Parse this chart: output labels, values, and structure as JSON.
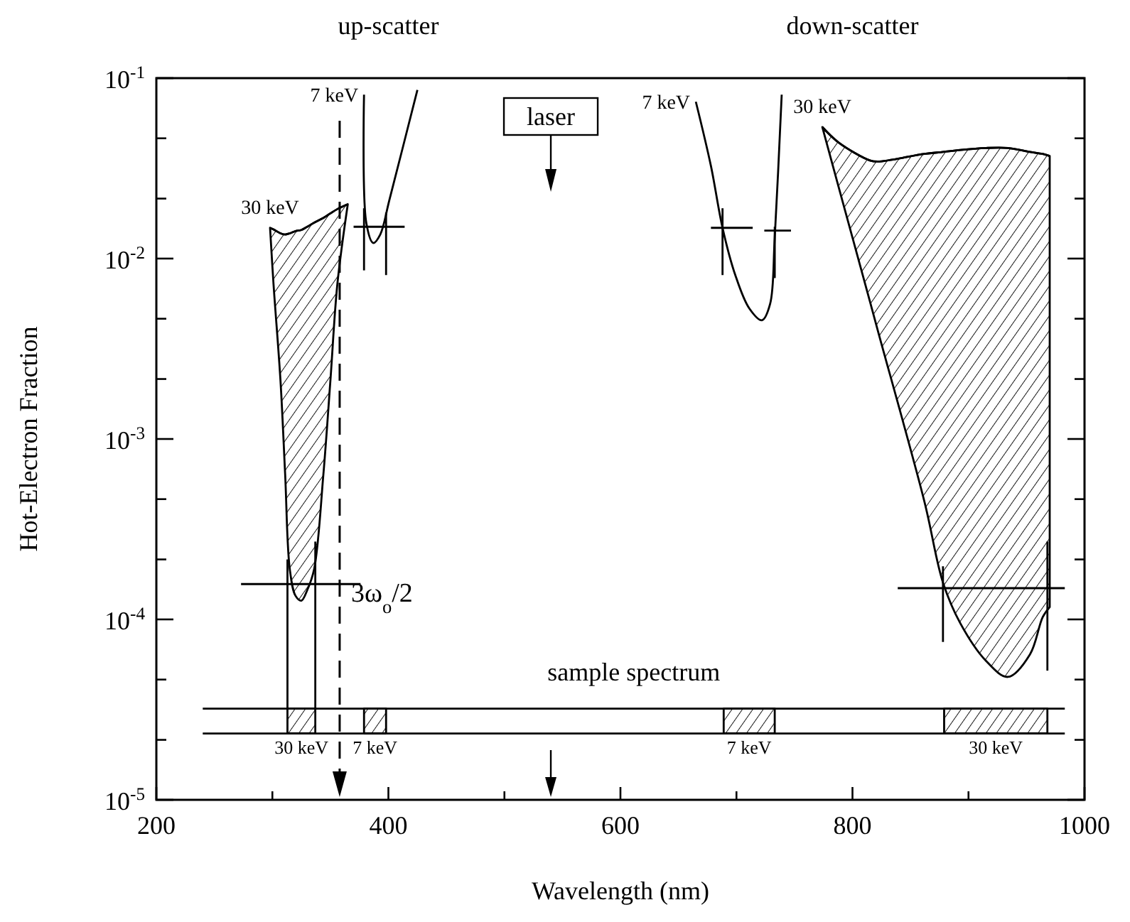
{
  "chart_data": {
    "type": "line",
    "xlabel": "Wavelength (nm)",
    "ylabel": "Hot-Electron Fraction",
    "log": "y",
    "xlim": [
      200,
      1000
    ],
    "ylim": [
      1e-05,
      0.1
    ],
    "xticks": [
      200,
      {
        "value": 300,
        "label": null
      },
      400,
      {
        "value": 500,
        "label": null
      },
      600,
      {
        "value": 700,
        "label": null
      },
      800,
      {
        "value": 900,
        "label": null
      },
      1000
    ],
    "yticks": [
      {
        "value": 1e-05,
        "label": "10$^{-5}$"
      },
      {
        "value": 2.15e-05,
        "label": null
      },
      {
        "value": 4.64e-05,
        "label": null
      },
      {
        "value": 0.0001,
        "label": "10$^{-4}$"
      },
      {
        "value": 0.000215,
        "label": null
      },
      {
        "value": 0.000464,
        "label": null
      },
      {
        "value": 0.001,
        "label": "10$^{-3}$"
      },
      {
        "value": 0.00215,
        "label": null
      },
      {
        "value": 0.00464,
        "label": null
      },
      {
        "value": 0.01,
        "label": "10$^{-2}$"
      },
      {
        "value": 0.0215,
        "label": null
      },
      {
        "value": 0.0464,
        "label": null
      },
      {
        "value": 0.1,
        "label": "10$^{-1}$"
      }
    ],
    "series": [
      {
        "name": "30 keV",
        "color": "#000000",
        "x": [
          298,
          301,
          307,
          311,
          315,
          320,
          325,
          330,
          336,
          344,
          350,
          356,
          365
        ],
        "values": [
          0.0148,
          0.0145,
          0.0138,
          0.0136,
          0.0138,
          0.0142,
          0.0144,
          0.015,
          0.0158,
          0.0168,
          0.0178,
          0.0188,
          0.02
        ],
        "upper": [
          0.0148,
          0.0145,
          0.0138,
          0.0136,
          0.0138,
          0.0142,
          0.0144,
          0.015,
          0.0158,
          0.0168,
          0.0178,
          0.0188,
          0.02
        ],
        "lower": [
          0.0148,
          0.0072,
          0.0021,
          0.00064,
          0.00019,
          0.000135,
          0.000127,
          0.000145,
          0.00019,
          0.00064,
          0.0021,
          0.0072,
          0.02
        ]
      },
      {
        "name": "7 keV",
        "color": "#000000",
        "x": [
          379,
          381,
          387,
          393,
          401,
          425
        ],
        "values": [
          0.081,
          0.0157,
          0.0122,
          0.0136,
          0.0213,
          0.086
        ]
      },
      {
        "name": "7 keV",
        "color": "#000000",
        "x": [
          665,
          678,
          688,
          699,
          711,
          722,
          729,
          733,
          739
        ],
        "values": [
          0.074,
          0.0326,
          0.0148,
          0.0081,
          0.0053,
          0.00455,
          0.0056,
          0.0131,
          0.081
        ]
      },
      {
        "name": "30 keV",
        "color": "#000000",
        "x": [
          774,
          788,
          815,
          822,
          862,
          878,
          893,
          915,
          934,
          953,
          964,
          970
        ],
        "values": [
          0.0536,
          0.044,
          0.035,
          0.0345,
          0.038,
          0.039,
          0.04,
          0.041,
          0.041,
          0.039,
          0.038,
          0.037
        ],
        "upper": [
          0.0536,
          0.044,
          0.035,
          0.0345,
          0.038,
          0.039,
          0.04,
          0.041,
          0.041,
          0.039,
          0.038,
          0.037
        ],
        "lower": [
          0.0536,
          0.025,
          0.0058,
          0.00395,
          0.00045,
          0.00016,
          9.5e-05,
          5.9e-05,
          4.8e-05,
          6.4e-05,
          0.000103,
          0.000117
        ]
      },
      {
        "color": "#000000",
        "x": [
          273,
          376
        ],
        "values": [
          0.000157,
          0.000157
        ]
      },
      {
        "color": "#000000",
        "x": [
          313,
          313
        ],
        "values": [
          0.000215,
          3.2e-05
        ]
      },
      {
        "color": "#000000",
        "x": [
          337,
          337
        ],
        "values": [
          0.00027,
          3.2e-05
        ]
      },
      {
        "color": "#000000",
        "x": [
          370,
          414
        ],
        "values": [
          0.015,
          0.015
        ]
      },
      {
        "color": "#000000",
        "x": [
          379,
          379
        ],
        "values": [
          0.019,
          0.0086
        ]
      },
      {
        "color": "#000000",
        "x": [
          398,
          398
        ],
        "values": [
          0.018,
          0.0081
        ]
      },
      {
        "color": "#000000",
        "x": [
          678,
          714
        ],
        "values": [
          0.0148,
          0.0148
        ]
      },
      {
        "color": "#000000",
        "x": [
          724,
          747
        ],
        "values": [
          0.0143,
          0.0143
        ]
      },
      {
        "color": "#000000",
        "x": [
          688,
          688
        ],
        "values": [
          0.019,
          0.0081
        ]
      },
      {
        "color": "#000000",
        "x": [
          733,
          733
        ],
        "values": [
          0.015,
          0.0078
        ]
      },
      {
        "color": "#000000",
        "x": [
          839,
          983
        ],
        "values": [
          0.000149,
          0.000149
        ]
      },
      {
        "color": "#000000",
        "x": [
          878,
          878
        ],
        "values": [
          0.000197,
          7.5e-05
        ]
      },
      {
        "color": "#000000",
        "x": [
          968,
          968
        ],
        "values": [
          0.00027,
          5.2e-05
        ]
      },
      {
        "name": "sample spectrum",
        "color": "#000000",
        "x": [
          240,
          983
        ],
        "values": [
          3.2e-05,
          3.2e-05
        ]
      },
      {
        "color": "#000000",
        "x": [
          240,
          983
        ],
        "values": [
          2.33e-05,
          2.33e-05
        ]
      },
      {
        "name": "30 keV",
        "color": "#000000",
        "x": [
          313,
          337
        ],
        "values": [
          2.33e-05,
          2.33e-05
        ],
        "upper": [
          3.2e-05,
          3.2e-05
        ],
        "lower": [
          2.33e-05,
          2.33e-05
        ]
      },
      {
        "name": "7 keV",
        "color": "#000000",
        "x": [
          379,
          398
        ],
        "values": [
          2.33e-05,
          2.33e-05
        ],
        "upper": [
          3.2e-05,
          3.2e-05
        ],
        "lower": [
          2.33e-05,
          2.33e-05
        ]
      },
      {
        "name": "7 keV",
        "color": "#000000",
        "x": [
          689,
          733
        ],
        "values": [
          2.33e-05,
          2.33e-05
        ],
        "upper": [
          3.2e-05,
          3.2e-05
        ],
        "lower": [
          2.33e-05,
          2.33e-05
        ]
      },
      {
        "name": "30 keV",
        "color": "#000000",
        "x": [
          879,
          968
        ],
        "values": [
          2.33e-05,
          2.33e-05
        ],
        "upper": [
          3.2e-05,
          3.2e-05
        ],
        "lower": [
          2.33e-05,
          2.33e-05
        ]
      }
    ],
    "ref_lines": [
      {
        "axis": "x",
        "value": 358,
        "label": "3ω$_{o}$/2",
        "line_style": "dashed"
      },
      {
        "axis": "x",
        "value": 540,
        "label": "laser"
      }
    ],
    "annotations": [
      "up-scatter",
      "down-scatter"
    ]
  }
}
